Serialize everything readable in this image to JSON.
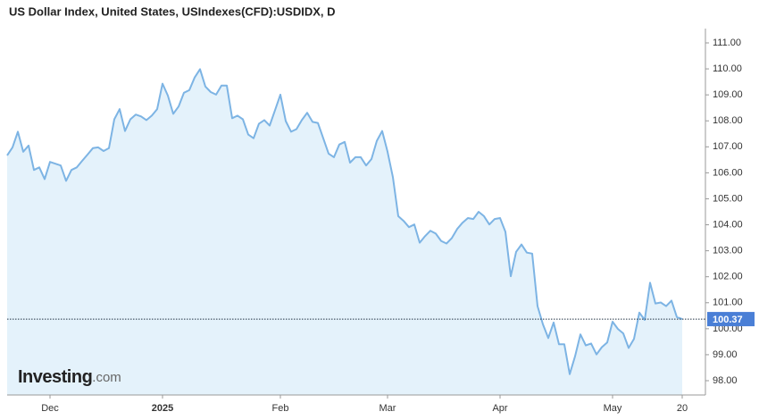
{
  "chart_data": {
    "type": "area",
    "title": "US Dollar Index, United States, USIndexes(CFD):USDIDX, D",
    "watermark": {
      "brand": "Investing",
      "suffix": ".com"
    },
    "line_color": "#7db4e4",
    "fill_color": "#e4f2fb",
    "categories": [
      null,
      null,
      null,
      null,
      null,
      null,
      null,
      null,
      "Dec",
      null,
      null,
      null,
      null,
      null,
      null,
      null,
      null,
      null,
      null,
      null,
      null,
      null,
      null,
      null,
      null,
      null,
      null,
      null,
      null,
      "2025",
      null,
      null,
      null,
      null,
      null,
      null,
      null,
      null,
      null,
      null,
      null,
      null,
      null,
      null,
      null,
      null,
      null,
      null,
      null,
      null,
      null,
      "Feb",
      null,
      null,
      null,
      null,
      null,
      null,
      null,
      null,
      null,
      null,
      null,
      null,
      null,
      null,
      null,
      null,
      null,
      null,
      null,
      "Mar",
      null,
      null,
      null,
      null,
      null,
      null,
      null,
      null,
      null,
      null,
      null,
      null,
      null,
      null,
      null,
      null,
      null,
      null,
      null,
      null,
      "Apr",
      null,
      null,
      null,
      null,
      null,
      null,
      null,
      null,
      null,
      null,
      null,
      null,
      null,
      null,
      null,
      null,
      null,
      null,
      null,
      null,
      "May",
      null,
      null,
      null,
      null,
      null,
      null,
      null,
      null,
      null,
      null,
      null,
      null,
      "20"
    ],
    "values": [
      106.67,
      106.98,
      107.58,
      106.81,
      107.05,
      106.11,
      106.21,
      105.76,
      106.42,
      106.35,
      106.28,
      105.69,
      106.11,
      106.21,
      106.46,
      106.7,
      106.95,
      106.98,
      106.84,
      106.95,
      108.06,
      108.45,
      107.61,
      108.06,
      108.24,
      108.17,
      108.03,
      108.2,
      108.45,
      109.43,
      108.97,
      108.27,
      108.55,
      109.08,
      109.18,
      109.67,
      109.99,
      109.32,
      109.11,
      109.01,
      109.36,
      109.36,
      108.1,
      108.2,
      108.06,
      107.47,
      107.33,
      107.89,
      108.03,
      107.82,
      108.41,
      109.01,
      107.99,
      107.58,
      107.68,
      108.03,
      108.31,
      107.96,
      107.92,
      107.33,
      106.74,
      106.6,
      107.09,
      107.19,
      106.39,
      106.6,
      106.6,
      106.28,
      106.53,
      107.23,
      107.61,
      106.81,
      105.83,
      104.33,
      104.15,
      103.91,
      104.01,
      103.31,
      103.56,
      103.77,
      103.66,
      103.38,
      103.28,
      103.49,
      103.84,
      104.08,
      104.26,
      104.22,
      104.5,
      104.33,
      104.01,
      104.22,
      104.26,
      103.73,
      102.02,
      102.96,
      103.24,
      102.93,
      102.89,
      100.87,
      100.17,
      99.64,
      100.24,
      99.4,
      99.4,
      98.25,
      98.94,
      99.78,
      99.36,
      99.43,
      99.01,
      99.29,
      99.47,
      100.27,
      99.99,
      99.82,
      99.26,
      99.61,
      100.62,
      100.34,
      101.77,
      100.97,
      101.01,
      100.87,
      101.08,
      100.45,
      100.37
    ],
    "current_price": {
      "value": 100.37,
      "label": "100.37",
      "color": "#4a7fd6"
    },
    "ylim": [
      97.45,
      111.55
    ],
    "yticks": [
      {
        "value": 98,
        "label": "98.00"
      },
      {
        "value": 99,
        "label": "99.00"
      },
      {
        "value": 100,
        "label": "100.00"
      },
      {
        "value": 101,
        "label": "101.00"
      },
      {
        "value": 102,
        "label": "102.00"
      },
      {
        "value": 103,
        "label": "103.00"
      },
      {
        "value": 104,
        "label": "104.00"
      },
      {
        "value": 105,
        "label": "105.00"
      },
      {
        "value": 106,
        "label": "106.00"
      },
      {
        "value": 107,
        "label": "107.00"
      },
      {
        "value": 108,
        "label": "108.00"
      },
      {
        "value": 109,
        "label": "109.00"
      },
      {
        "value": 110,
        "label": "110.00"
      },
      {
        "value": 111,
        "label": "111.00"
      }
    ],
    "grid": false
  }
}
